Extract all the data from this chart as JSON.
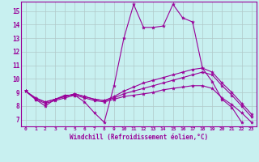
{
  "xlabel": "Windchill (Refroidissement éolien,°C)",
  "bg_color": "#c8f0f0",
  "line_color": "#990099",
  "grid_color": "#b0c8c8",
  "xlim": [
    -0.5,
    23.5
  ],
  "ylim": [
    6.5,
    15.7
  ],
  "yticks": [
    7,
    8,
    9,
    10,
    11,
    12,
    13,
    14,
    15
  ],
  "xticks": [
    0,
    1,
    2,
    3,
    4,
    5,
    6,
    7,
    8,
    9,
    10,
    11,
    12,
    13,
    14,
    15,
    16,
    17,
    18,
    19,
    20,
    21,
    22,
    23
  ],
  "lines": [
    {
      "x": [
        0,
        1,
        2,
        3,
        4,
        5,
        6,
        7,
        8,
        9,
        10,
        11,
        12,
        13,
        14,
        15,
        16,
        17,
        18,
        19,
        20,
        21,
        22,
        23
      ],
      "y": [
        9.1,
        8.5,
        8.0,
        8.5,
        8.8,
        8.8,
        8.3,
        7.5,
        6.8,
        9.5,
        13.0,
        15.5,
        13.8,
        13.8,
        13.9,
        15.5,
        14.5,
        14.2,
        10.8,
        9.8,
        8.5,
        7.9,
        6.8,
        null
      ]
    },
    {
      "x": [
        0,
        1,
        2,
        3,
        4,
        5,
        6,
        7,
        8,
        9,
        10,
        11,
        12,
        13,
        14,
        15,
        16,
        17,
        18,
        19,
        20,
        21,
        22,
        23
      ],
      "y": [
        9.1,
        8.5,
        8.2,
        8.4,
        8.6,
        8.8,
        8.6,
        8.4,
        8.3,
        8.5,
        8.7,
        8.8,
        8.9,
        9.0,
        9.2,
        9.3,
        9.4,
        9.5,
        9.5,
        9.3,
        8.6,
        8.1,
        7.5,
        6.8
      ]
    },
    {
      "x": [
        0,
        1,
        2,
        3,
        4,
        5,
        6,
        7,
        8,
        9,
        10,
        11,
        12,
        13,
        14,
        15,
        16,
        17,
        18,
        19,
        20,
        21,
        22,
        23
      ],
      "y": [
        9.1,
        8.6,
        8.3,
        8.5,
        8.7,
        8.9,
        8.7,
        8.5,
        8.4,
        8.6,
        8.9,
        9.1,
        9.3,
        9.5,
        9.7,
        9.9,
        10.1,
        10.3,
        10.5,
        10.3,
        9.5,
        8.8,
        8.0,
        7.2
      ]
    },
    {
      "x": [
        0,
        1,
        2,
        3,
        4,
        5,
        6,
        7,
        8,
        9,
        10,
        11,
        12,
        13,
        14,
        15,
        16,
        17,
        18,
        19,
        20,
        21,
        22,
        23
      ],
      "y": [
        9.1,
        8.6,
        8.3,
        8.5,
        8.7,
        8.9,
        8.7,
        8.5,
        8.4,
        8.7,
        9.1,
        9.4,
        9.7,
        9.9,
        10.1,
        10.3,
        10.5,
        10.7,
        10.8,
        10.5,
        9.7,
        9.0,
        8.2,
        7.4
      ]
    }
  ]
}
